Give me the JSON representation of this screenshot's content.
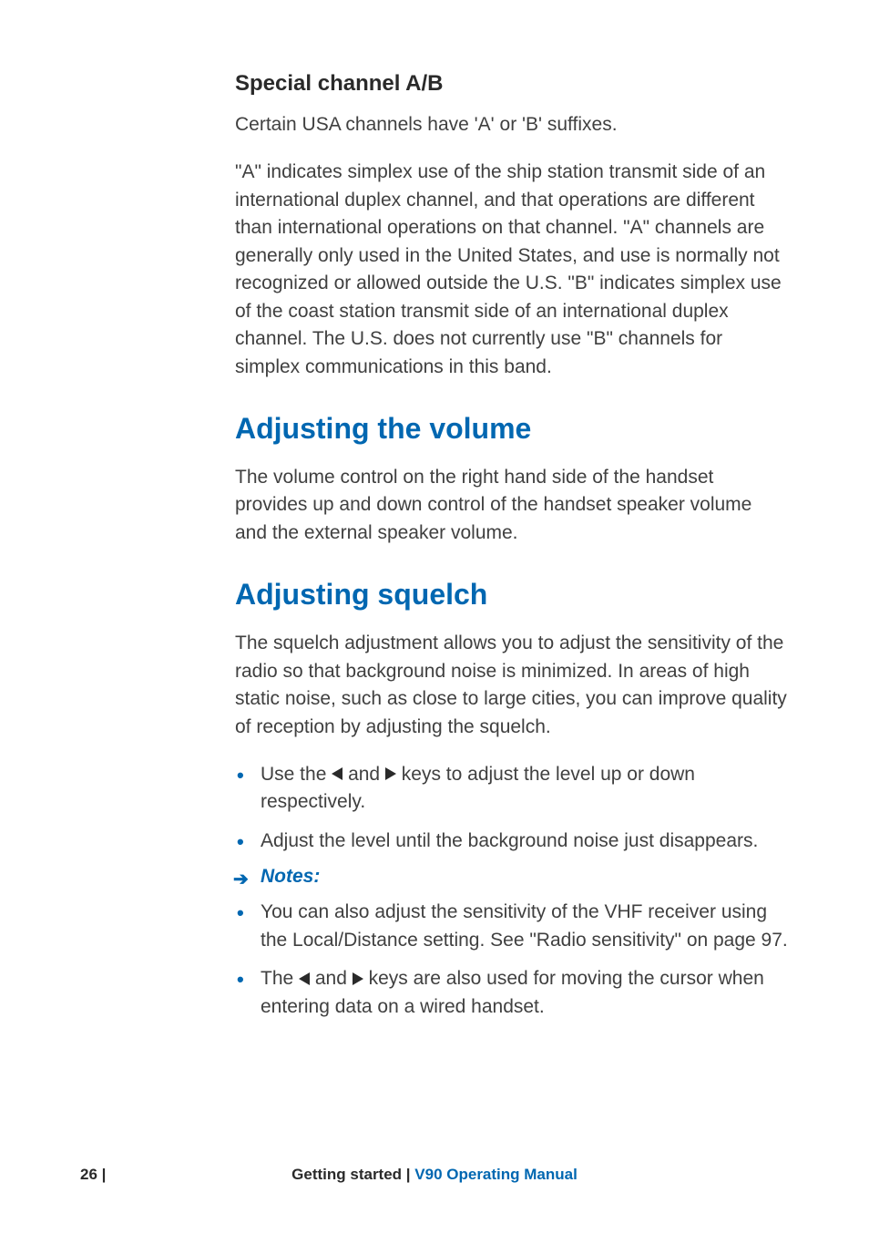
{
  "section1": {
    "heading": "Special channel A/B",
    "p1": "Certain USA channels have 'A' or 'B' suffixes.",
    "p2": "\"A\" indicates simplex use of the ship station transmit side of an international duplex channel, and that operations are different than international operations on that channel.  \"A\" channels are generally only used in the United States, and use is normally not recognized or allowed outside the U.S. \"B\" indicates simplex use of the coast station transmit side of an international duplex channel. The U.S. does not currently use \"B\" channels for simplex communications in this band."
  },
  "section2": {
    "heading": "Adjusting the volume",
    "p1": "The volume control on the right hand side of the handset provides up and down control of the handset speaker volume and the external speaker volume."
  },
  "section3": {
    "heading": "Adjusting squelch",
    "p1": "The squelch adjustment allows you to adjust the sensitivity of the radio so that background noise is minimized. In areas of high static noise, such as close to large cities, you can improve quality of reception by adjusting the squelch.",
    "bullets": [
      {
        "pre": "Use the ",
        "mid": " and ",
        "post": " keys to adjust the level up or down respectively."
      },
      {
        "text": "Adjust the level until the background noise just disappears."
      }
    ],
    "notes_label": "Notes:",
    "notes_bullets": [
      {
        "text": "You can also adjust the sensitivity of the VHF receiver using the Local/Distance setting.  See \"Radio sensitivity\" on page 97."
      },
      {
        "pre": "The ",
        "mid": " and ",
        "post": " keys are also used for moving the cursor when entering data on a wired handset."
      }
    ]
  },
  "footer": {
    "page": "26",
    "section": "Getting started",
    "manual": "V90 Operating Manual"
  },
  "colors": {
    "accent": "#0067b1",
    "text": "#404040",
    "heading_dark": "#2a2a2a",
    "background": "#ffffff"
  },
  "typography": {
    "body_fontsize": 21,
    "h2_fontsize": 32,
    "h3_fontsize": 24,
    "footer_fontsize": 17,
    "line_height": 1.45
  }
}
